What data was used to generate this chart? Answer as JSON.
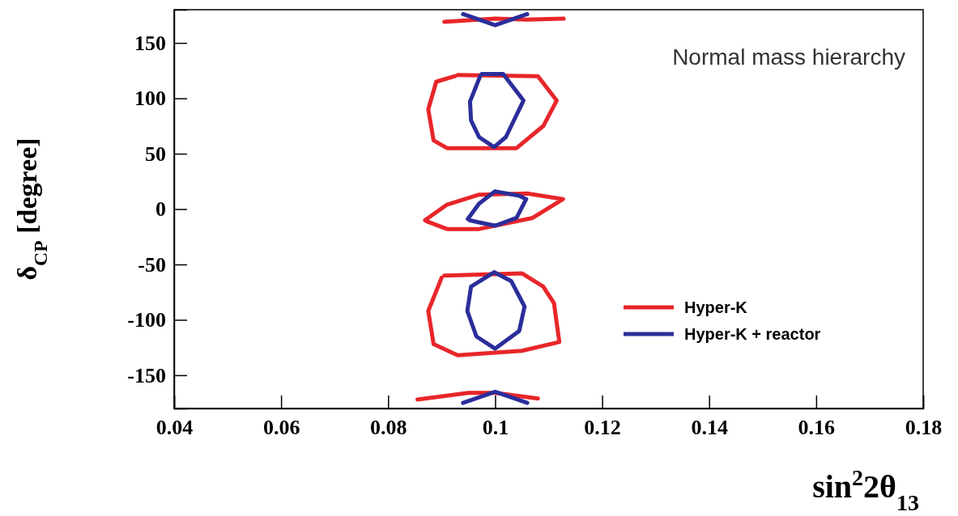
{
  "chart_data": {
    "type": "line",
    "xlabel": "sin$^{2}$2θ$_{13}$",
    "ylabel": "δ$_{CP}$ [degree]",
    "annotations": [
      "Normal mass hierarchy"
    ],
    "xlim": [
      0.04,
      0.18
    ],
    "xticks": [
      0.04,
      0.06,
      0.08,
      {
        "value": 0.1,
        "label": "0.1"
      },
      0.12,
      0.14,
      0.16,
      0.18
    ],
    "ylim": [
      -180,
      180
    ],
    "yticks": [
      -150,
      -100,
      -50,
      0,
      50,
      100,
      150
    ],
    "grid": false,
    "legend": "bottom right",
    "marker": "none",
    "line_style": "solid",
    "series": [
      {
        "name": "Hyper-K",
        "color": "#e8262a",
        "x": [
          0.0905,
          0.097,
          0.1,
          0.106,
          0.1128
        ],
        "values": [
          169,
          171,
          172,
          171,
          172
        ]
      },
      {
        "color": "#e8262a",
        "x": [
          0.093,
          0.108,
          0.1115,
          0.109,
          0.104,
          0.091,
          0.0885,
          0.0875,
          0.089,
          0.0925
        ],
        "values": [
          121,
          120,
          98,
          75,
          55,
          55,
          62,
          90,
          115,
          120
        ]
      },
      {
        "color": "#e8262a",
        "x": [
          0.0869,
          0.091,
          0.097,
          0.106,
          0.1127,
          0.107,
          0.097,
          0.091,
          0.0872
        ],
        "values": [
          -10,
          4,
          13,
          14,
          9,
          -8,
          -18,
          -18,
          -11
        ]
      },
      {
        "color": "#e8262a",
        "x": [
          0.0905,
          0.105,
          0.109,
          0.111,
          0.112,
          0.105,
          0.093,
          0.0885,
          0.0875,
          0.09
        ],
        "values": [
          -60,
          -58,
          -70,
          -85,
          -120,
          -128,
          -132,
          -122,
          -92,
          -62
        ]
      },
      {
        "color": "#e8262a",
        "x": [
          0.0855,
          0.095,
          0.1,
          0.108
        ],
        "values": [
          -172,
          -166,
          -166,
          -171
        ]
      },
      {
        "name": "Hyper-K + reactor",
        "color": "#2b2e9a",
        "x": [
          0.094,
          0.1,
          0.106
        ],
        "values": [
          176,
          166,
          176
        ]
      },
      {
        "color": "#2b2e9a",
        "x": [
          0.0975,
          0.1015,
          0.1053,
          0.102,
          0.0998,
          0.097,
          0.0955,
          0.0953,
          0.0972
        ],
        "values": [
          122,
          122,
          98,
          65,
          56,
          65,
          80,
          97,
          120
        ]
      },
      {
        "color": "#2b2e9a",
        "x": [
          0.0949,
          0.097,
          0.1,
          0.1045,
          0.1058,
          0.104,
          0.1,
          0.097,
          0.0952
        ],
        "values": [
          -9,
          5,
          16,
          12,
          9,
          -8,
          -15,
          -12,
          -10
        ]
      },
      {
        "color": "#2b2e9a",
        "x": [
          0.0998,
          0.103,
          0.1055,
          0.1045,
          0.1,
          0.0965,
          0.0948,
          0.0955,
          0.0995
        ],
        "values": [
          -57,
          -65,
          -88,
          -110,
          -126,
          -115,
          -92,
          -70,
          -58
        ]
      },
      {
        "color": "#2b2e9a",
        "x": [
          0.094,
          0.1,
          0.106
        ],
        "values": [
          -175,
          -165,
          -175
        ]
      }
    ]
  }
}
